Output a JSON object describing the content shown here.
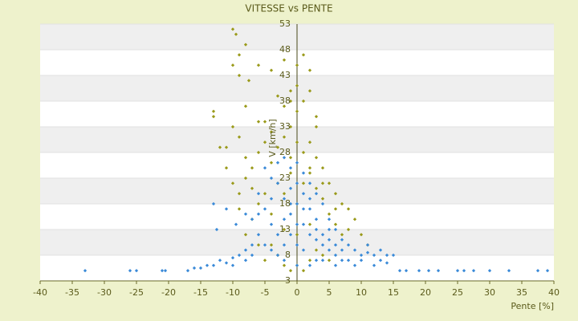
{
  "chart_data": {
    "type": "scatter",
    "title": "VITESSE vs PENTE",
    "x_label": "Pente [%]",
    "y_label": "V [km/h]",
    "xlim": [
      -40,
      40
    ],
    "xticks": [
      -40,
      -35,
      -30,
      -25,
      -20,
      -15,
      -10,
      -5,
      0,
      5,
      10,
      15,
      20,
      25,
      30,
      35,
      40
    ],
    "ylim": [
      3,
      53
    ],
    "yticks": [
      3,
      8,
      13,
      18,
      23,
      28,
      33,
      38,
      43,
      48,
      53
    ],
    "grid": true,
    "series": [
      {
        "color": "#9a9a1a",
        "x": [
          -10,
          -9.5,
          -8,
          -9,
          -9,
          -7.5,
          -10,
          -6,
          -4,
          -2,
          0,
          1,
          2,
          -1,
          -3,
          -2,
          -13,
          -13,
          -10,
          -5,
          0,
          1,
          2,
          3,
          -11,
          -9,
          -8,
          -7,
          -6,
          -5,
          -4,
          -3,
          -2,
          -1,
          0,
          1,
          2,
          3,
          4,
          5,
          6,
          7,
          8,
          9,
          10,
          11,
          -10,
          -9,
          -8,
          -7,
          -6,
          -5,
          -4,
          -3,
          -2,
          -1,
          0,
          1,
          2,
          3,
          4,
          5,
          6,
          7,
          -4,
          -3,
          -2,
          -1,
          0,
          1,
          2,
          -5,
          -8,
          -7,
          -6,
          3,
          4,
          5,
          -2,
          0,
          2,
          -12,
          -11,
          -1,
          3,
          -6,
          -8,
          0,
          -1,
          2,
          4,
          6,
          8,
          -9,
          -4
        ],
        "values": [
          52,
          51,
          49,
          47,
          43,
          42,
          45,
          45,
          44,
          46,
          45,
          47,
          44,
          40,
          39,
          37,
          36,
          35,
          33,
          34,
          36,
          38,
          40,
          33,
          29,
          31,
          27,
          25,
          28,
          30,
          32,
          29,
          31,
          33,
          30,
          28,
          30,
          27,
          25,
          22,
          20,
          18,
          17,
          15,
          12,
          10,
          22,
          20,
          23,
          21,
          18,
          20,
          16,
          22,
          20,
          24,
          18,
          22,
          25,
          21,
          19,
          16,
          14,
          12,
          10,
          8,
          6,
          5,
          6,
          5,
          7,
          7,
          12,
          15,
          10,
          9,
          8,
          7,
          13,
          12,
          14,
          29,
          25,
          27,
          35,
          34,
          37,
          41,
          38,
          24,
          22,
          17,
          13,
          17,
          26
        ]
      },
      {
        "color": "#3a8ad8",
        "x": [
          -33,
          -26,
          -25,
          -21,
          -20.5,
          -17,
          -16,
          -15,
          -14,
          -13,
          -12,
          -11,
          -10,
          -9,
          -8,
          -7,
          -12.5,
          -13,
          -11,
          -9.5,
          -8,
          -7,
          -6,
          -5,
          -4,
          -3,
          -2,
          -1,
          0,
          1,
          2,
          3,
          4,
          5,
          6,
          7,
          8,
          9,
          10,
          11,
          12,
          13,
          14,
          15,
          16,
          17,
          19,
          20.5,
          22,
          25,
          26,
          27.5,
          30,
          33,
          37.5,
          39,
          -3,
          -2,
          -1,
          0,
          1,
          2,
          3,
          4,
          5,
          6,
          7,
          -5,
          -4,
          -6,
          -3,
          -2,
          0,
          2,
          4,
          -1,
          1,
          -2,
          3,
          0,
          -1,
          1,
          2,
          5,
          6,
          8,
          9,
          10,
          12,
          -7,
          -8,
          -10,
          3,
          -4,
          -5,
          -6,
          4,
          7,
          -3,
          2,
          0,
          0,
          -1,
          1,
          11,
          13,
          14,
          -2,
          3,
          5,
          -4,
          6
        ],
        "values": [
          5,
          5,
          5,
          5,
          5,
          5,
          5.5,
          5.5,
          6,
          6,
          7,
          6.5,
          7.5,
          8,
          9,
          10,
          13,
          18,
          17,
          14,
          16,
          15,
          20,
          25,
          23,
          26,
          27,
          25,
          26,
          24,
          22,
          20,
          18,
          15,
          13,
          11,
          10,
          9,
          8,
          8.5,
          8,
          7,
          6.5,
          8,
          5,
          5,
          5,
          5,
          5,
          5,
          5,
          5,
          5,
          5,
          5,
          5,
          12,
          15,
          18,
          10,
          14,
          17,
          11,
          12,
          9,
          8,
          7,
          10,
          14,
          12,
          8,
          7,
          6,
          6,
          7,
          21,
          20,
          19,
          15,
          22,
          12,
          9,
          12,
          11,
          10,
          7,
          6,
          7,
          6,
          8,
          7,
          6,
          7,
          9,
          17,
          16,
          10,
          9,
          22,
          19,
          14,
          18,
          16,
          17,
          10,
          9,
          8,
          10,
          13,
          13,
          19,
          6
        ]
      }
    ]
  }
}
